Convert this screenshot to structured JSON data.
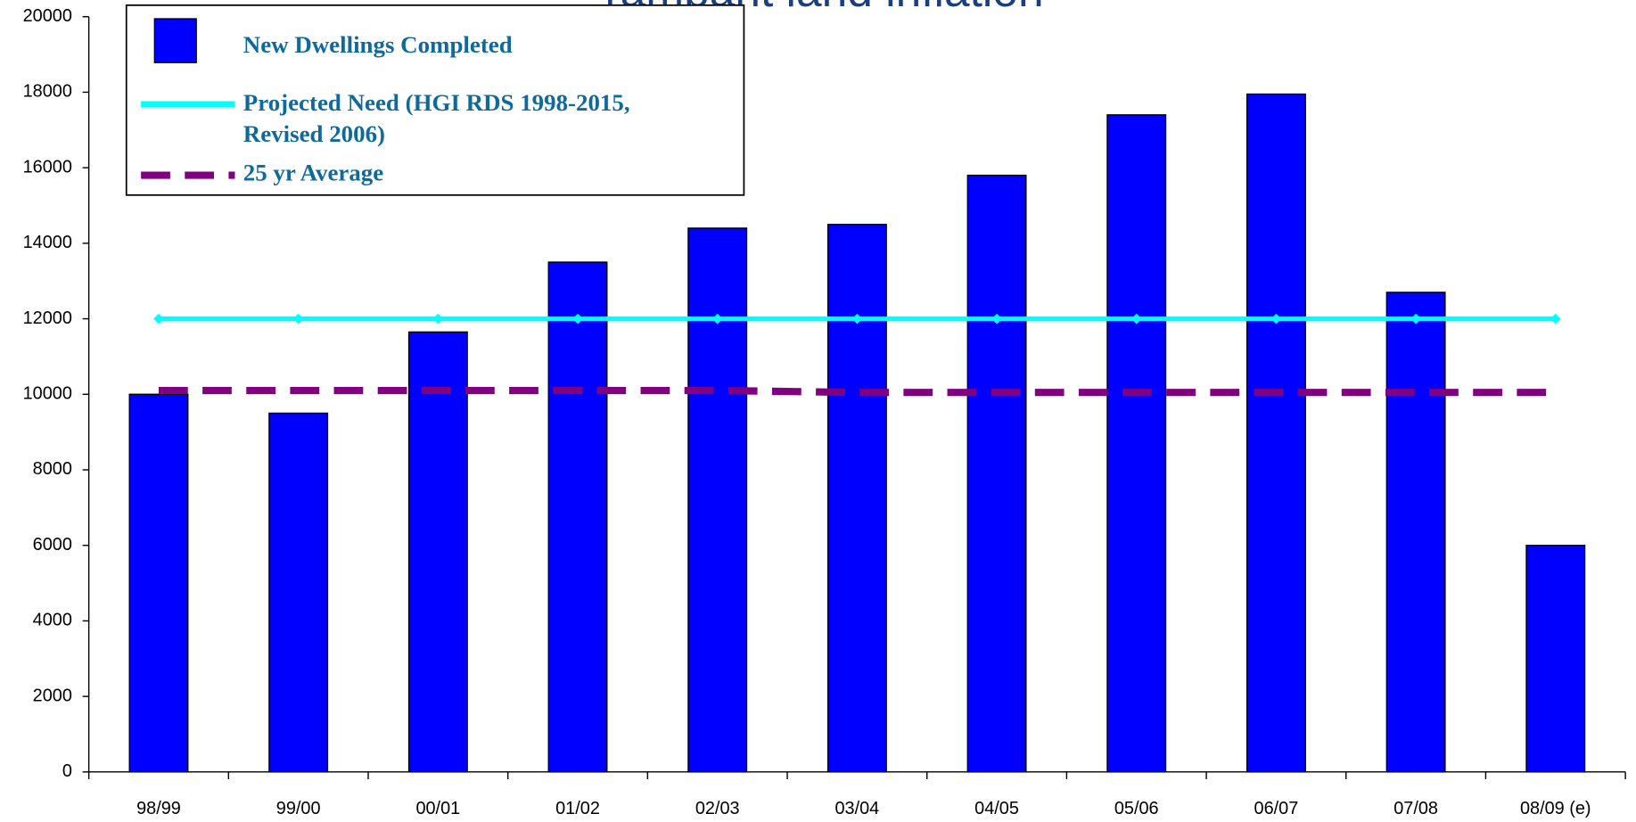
{
  "chart_data": {
    "type": "bar",
    "title": "rampant land inflation",
    "categories": [
      "98/99",
      "99/00",
      "00/01",
      "01/02",
      "02/03",
      "03/04",
      "04/05",
      "05/06",
      "06/07",
      "07/08",
      "08/09 (e)"
    ],
    "series": [
      {
        "name": "New Dwellings Completed",
        "type": "bar",
        "color": "#0000ff",
        "values": [
          10000,
          9500,
          11650,
          13500,
          14400,
          14500,
          15800,
          17400,
          17950,
          12700,
          6000
        ]
      },
      {
        "name": "Projected Need (HGI RDS 1998-2015, Revised 2006)",
        "type": "line",
        "color": "#00ffff",
        "values": [
          12000,
          12000,
          12000,
          12000,
          12000,
          12000,
          12000,
          12000,
          12000,
          12000,
          12000
        ]
      },
      {
        "name": "25 yr Average",
        "type": "dashed",
        "color": "#800080",
        "values": [
          10100,
          10100,
          10100,
          10100,
          10100,
          10050,
          10050,
          10050,
          10050,
          10050,
          10050
        ]
      }
    ],
    "ylim": [
      0,
      20000
    ],
    "yticks": [
      0,
      2000,
      4000,
      6000,
      8000,
      10000,
      12000,
      14000,
      16000,
      18000,
      20000
    ]
  }
}
